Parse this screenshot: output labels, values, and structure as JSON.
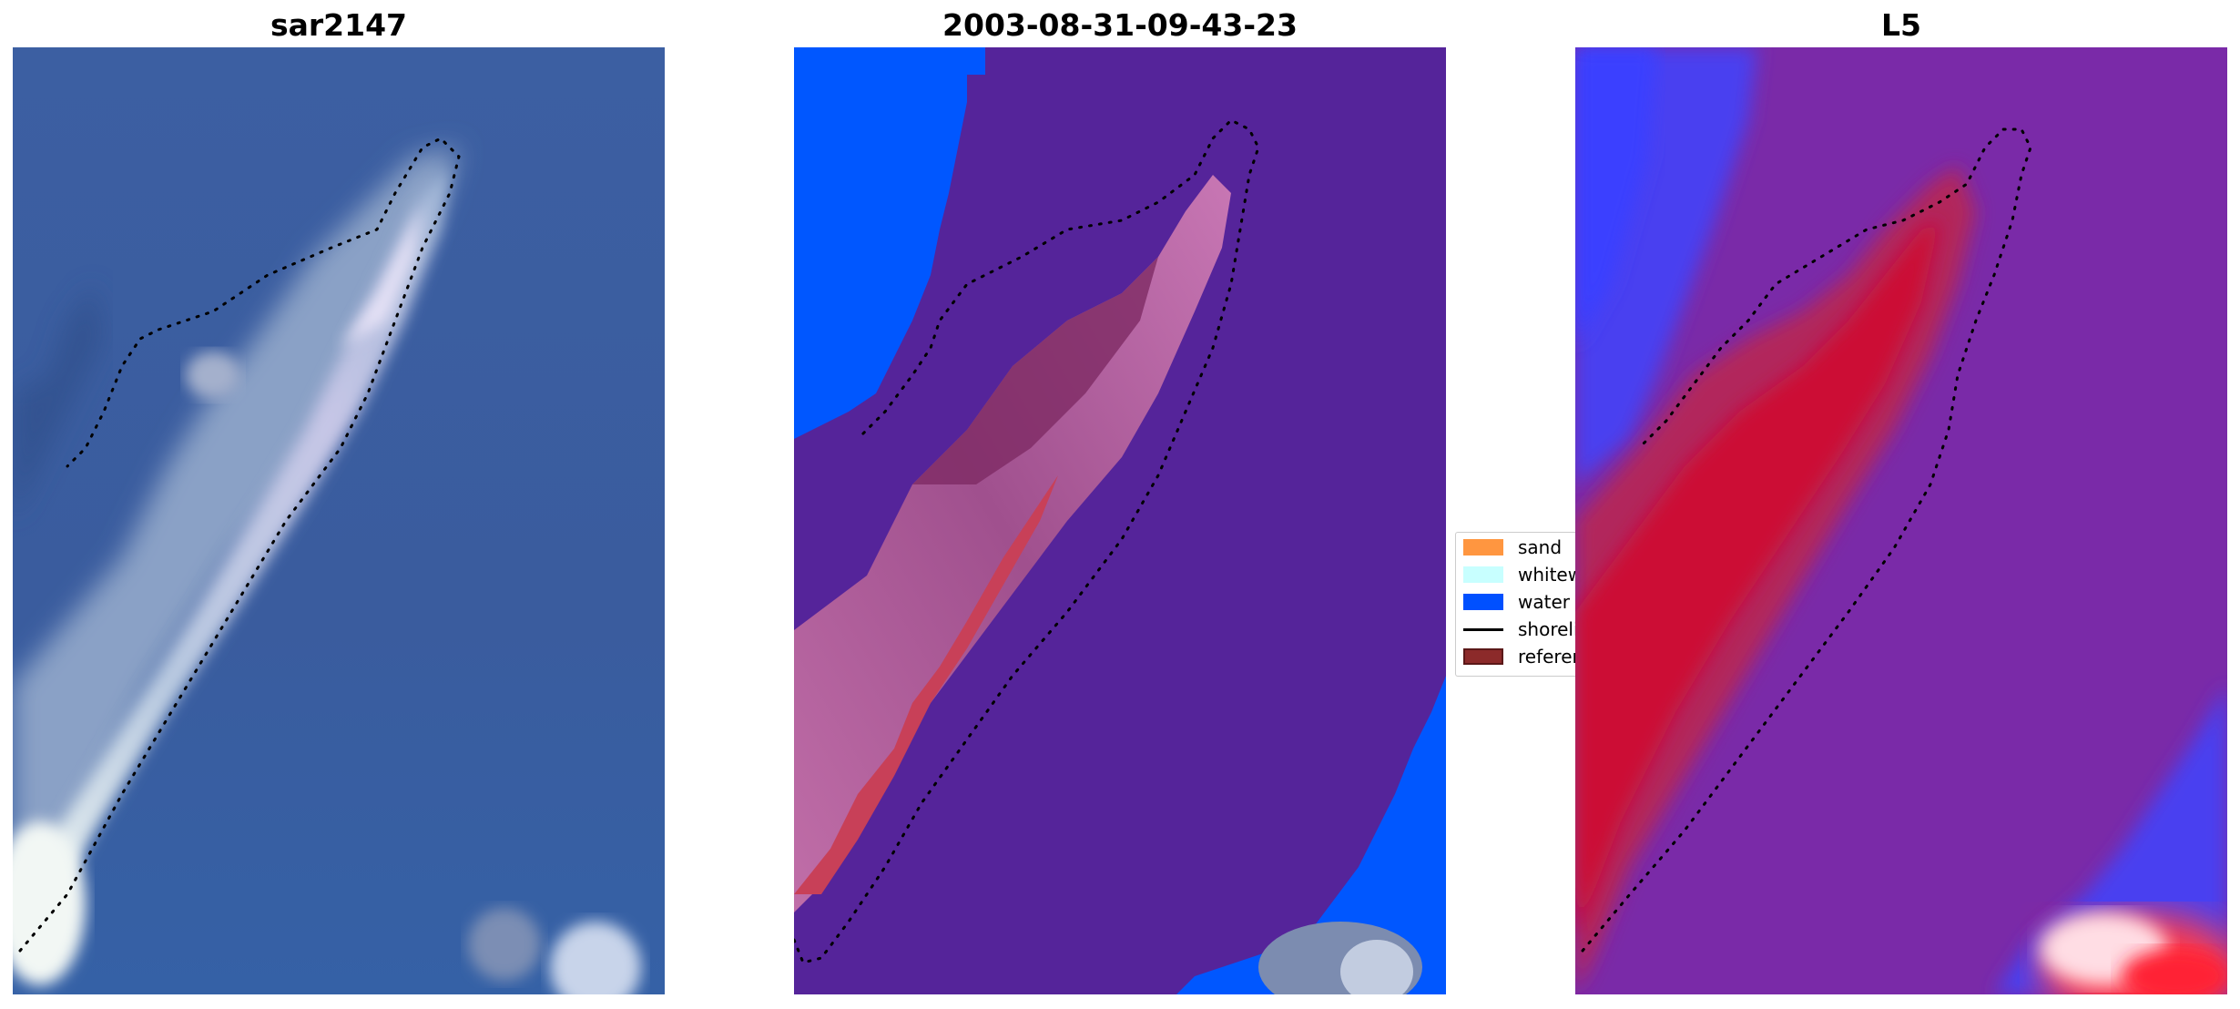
{
  "panels": [
    {
      "title": "sar2147",
      "kind": "rgb"
    },
    {
      "title": "2003-08-31-09-43-23",
      "kind": "classified"
    },
    {
      "title": "L5",
      "kind": "index"
    }
  ],
  "legend": {
    "items": [
      {
        "label": "sand",
        "color": "#ff9640",
        "kind": "patch"
      },
      {
        "label": "whitewater",
        "color": "#c8ffff",
        "kind": "patch"
      },
      {
        "label": "water",
        "color": "#0050ff",
        "kind": "patch"
      },
      {
        "label": "shoreline",
        "color": "#000000",
        "kind": "line"
      },
      {
        "label": "reference",
        "color": "#8c2a2a",
        "kind": "patch"
      }
    ]
  },
  "colors": {
    "ocean_rgb": "#3a5ea0",
    "classified_background": "#55249a",
    "classified_water": "#0057ff",
    "index_purple": "#7a2aa8",
    "index_red": "#c80030",
    "index_blue": "#3040ff"
  }
}
